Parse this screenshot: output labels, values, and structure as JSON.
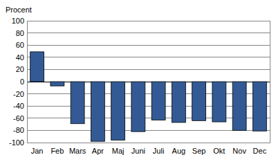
{
  "chart_data": {
    "type": "bar",
    "ylabel": "Procent",
    "categories": [
      "Jan",
      "Feb",
      "Mars",
      "Apr",
      "Maj",
      "Juni",
      "Juli",
      "Aug",
      "Sep",
      "Okt",
      "Nov",
      "Dec"
    ],
    "values": [
      49,
      -7,
      -69,
      -98,
      -96,
      -82,
      -63,
      -67,
      -64,
      -66,
      -80,
      -81
    ],
    "color": "#335a94",
    "ylim": [
      -100,
      100
    ],
    "yticks": [
      -100,
      -80,
      -60,
      -40,
      -20,
      0,
      20,
      40,
      60,
      80,
      100
    ],
    "grid": true
  }
}
